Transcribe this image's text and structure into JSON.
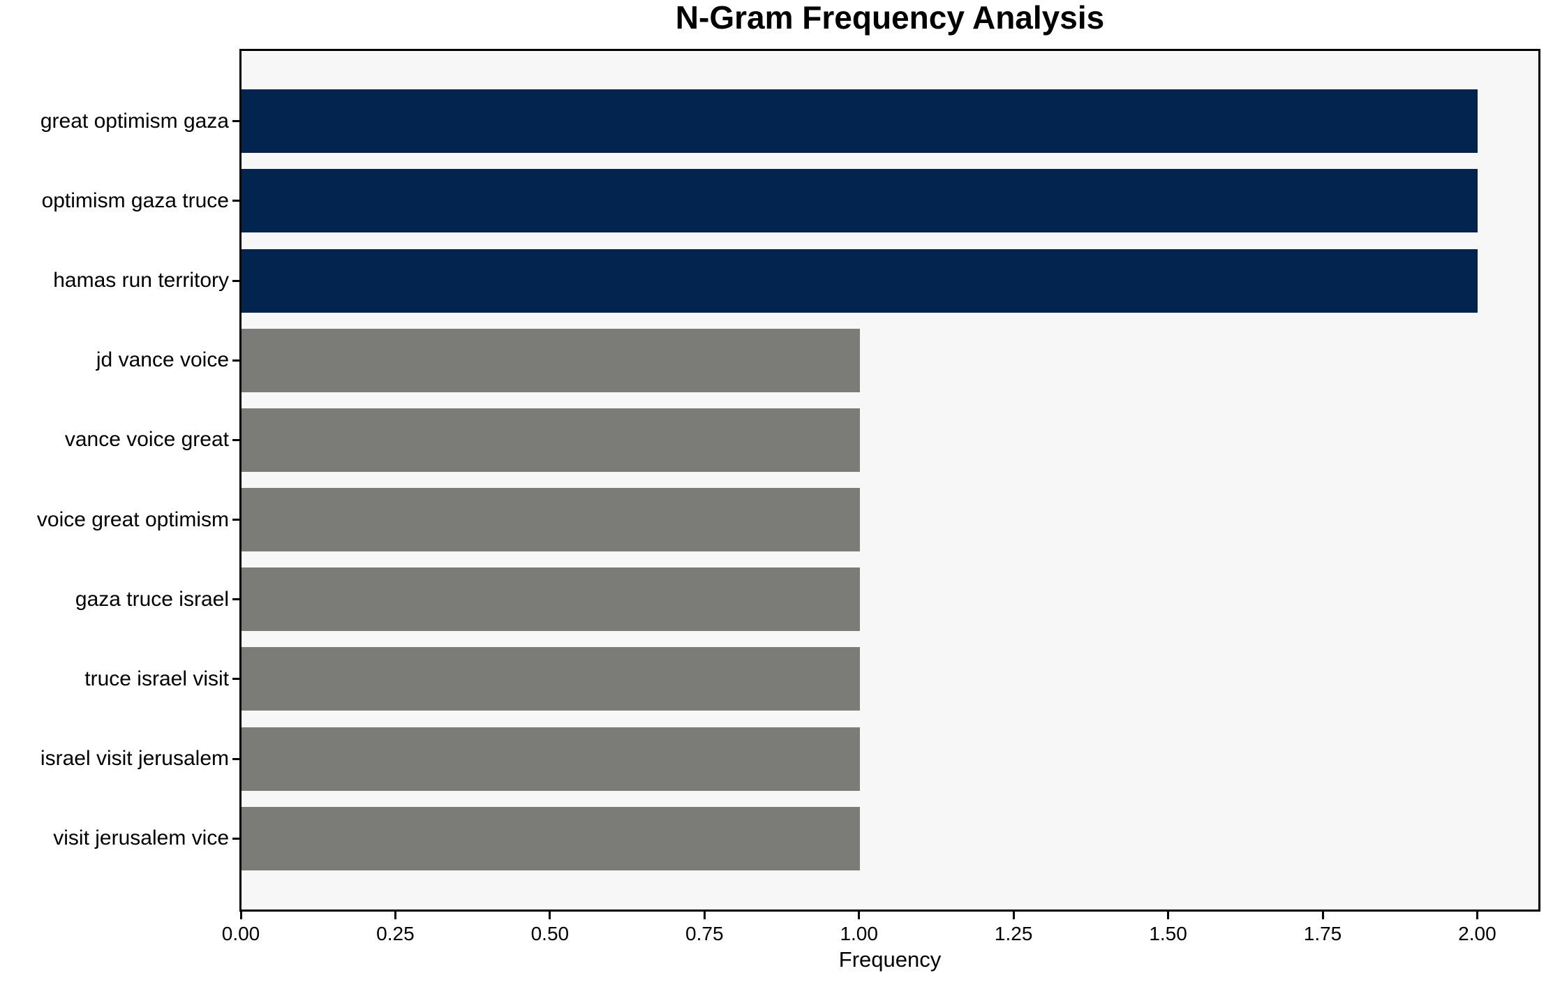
{
  "chart_data": {
    "type": "bar",
    "orientation": "horizontal",
    "title": "N-Gram Frequency Analysis",
    "xlabel": "Frequency",
    "ylabel": "",
    "categories": [
      "great optimism gaza",
      "optimism gaza truce",
      "hamas run territory",
      "jd vance voice",
      "vance voice great",
      "voice great optimism",
      "gaza truce israel",
      "truce israel visit",
      "israel visit jerusalem",
      "visit jerusalem vice"
    ],
    "values": [
      2,
      2,
      2,
      1,
      1,
      1,
      1,
      1,
      1,
      1
    ],
    "bar_colors": [
      "#02244e",
      "#02244e",
      "#02244e",
      "#7b7b78",
      "#7b7b78",
      "#7b7b78",
      "#7b7b78",
      "#7b7b78",
      "#7b7b78",
      "#7b7b78"
    ],
    "xlim": [
      0,
      2.1
    ],
    "xtick_values": [
      0,
      0.25,
      0.5,
      0.75,
      1,
      1.25,
      1.5,
      1.75,
      2
    ],
    "xtick_labels": [
      "0.00",
      "0.25",
      "0.50",
      "0.75",
      "1.00",
      "1.25",
      "1.50",
      "1.75",
      "2.00"
    ],
    "grid": false,
    "legend": null,
    "colors": {
      "highlight_bar": "#02244e",
      "default_bar": "#7b7b78",
      "plot_background": "#f7f7f7",
      "figure_background": "#ffffff",
      "spine": "#000000",
      "text": "#000000"
    }
  }
}
